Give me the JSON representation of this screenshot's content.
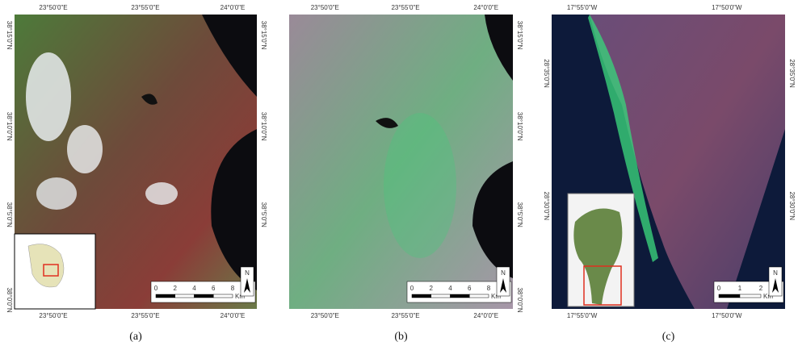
{
  "panels": [
    {
      "caption": "(a)",
      "top_labels": [
        "23°50'0\"E",
        "23°55'0\"E",
        "24°0'0\"E"
      ],
      "bottom_labels": [
        "23°50'0\"E",
        "23°55'0\"E",
        "24°0'0\"E"
      ],
      "left_labels": [
        "38°15'0\"N",
        "38°10'0\"N",
        "38°5'0\"N",
        "38°0'0\"N"
      ],
      "right_labels": [
        "38°15'0\"N",
        "38°10'0\"N",
        "38°5'0\"N"
      ],
      "scale": [
        "0",
        "2",
        "4",
        "6",
        "8"
      ],
      "scale_unit": "Km",
      "north": "N"
    },
    {
      "caption": "(b)",
      "top_labels": [
        "23°50'0\"E",
        "23°55'0\"E",
        "24°0'0\"E"
      ],
      "bottom_labels": [
        "23°50'0\"E",
        "23°55'0\"E",
        "24°0'0\"E"
      ],
      "left_labels": [],
      "right_labels": [
        "38°15'0\"N",
        "38°10'0\"N",
        "38°5'0\"N",
        "38°0'0\"N"
      ],
      "scale": [
        "0",
        "2",
        "4",
        "6",
        "8"
      ],
      "scale_unit": "Km",
      "north": "N"
    },
    {
      "caption": "(c)",
      "top_labels": [
        "17°55'0\"W",
        "17°50'0\"W"
      ],
      "bottom_labels": [
        "17°55'0\"W",
        "17°50'0\"W"
      ],
      "left_labels": [
        "28°35'0\"N",
        "28°30'0\"N"
      ],
      "right_labels": [
        "28°35'0\"N",
        "28°30'0\"N"
      ],
      "scale": [
        "0",
        "1",
        "2"
      ],
      "scale_unit": "Km",
      "north": "N"
    }
  ]
}
